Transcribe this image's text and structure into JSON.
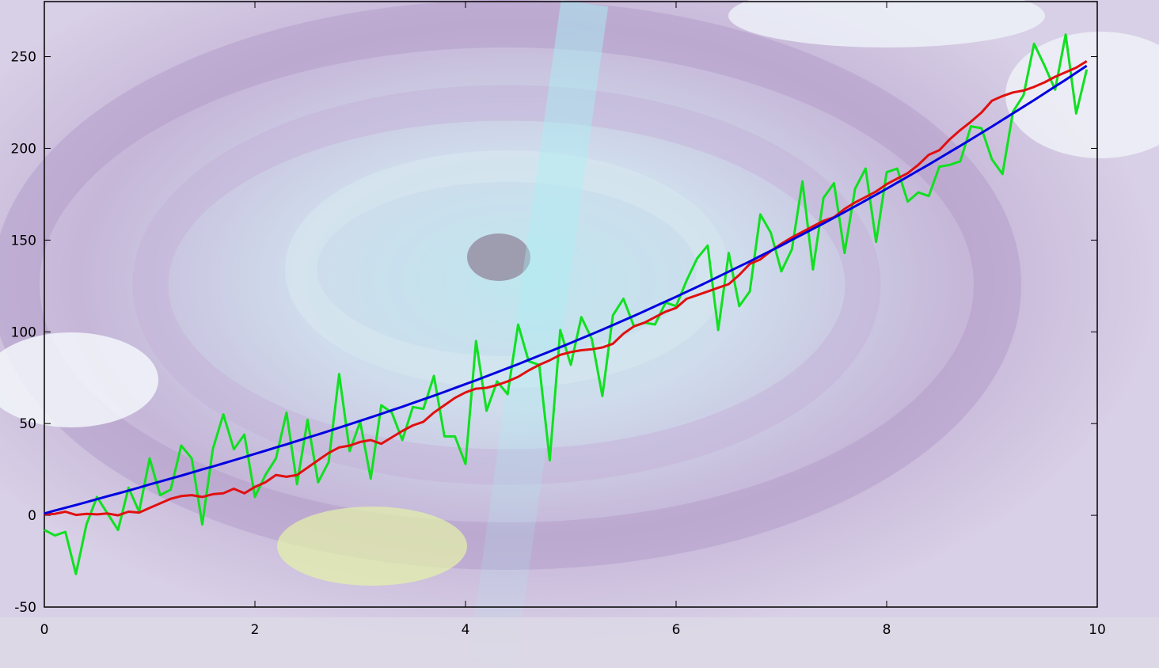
{
  "colors": {
    "frame": "#000000",
    "series_blue": "#0000e0",
    "series_red": "#e01010",
    "series_green": "#10e020",
    "bg_deep": "#c9b8d6",
    "bg_mid": "#b9a6cf",
    "bg_light": "#dde8f2",
    "bg_glow": "#bfe6ee",
    "bg_cloud": "#f2f6fa",
    "bg_yellowgreen": "#e6f2a8",
    "bg_cyan_beam": "#a8f0f4"
  },
  "background": {
    "description_icon": "galaxy-background-image"
  },
  "chart_data": {
    "type": "line",
    "xlim": [
      0,
      10
    ],
    "ylim": [
      -50,
      280
    ],
    "x_ticks": [
      0,
      2,
      4,
      6,
      8,
      10
    ],
    "x_tick_labels": [
      "0",
      "2",
      "4",
      "6",
      "8",
      "10"
    ],
    "y_ticks": [
      -50,
      0,
      50,
      100,
      150,
      200,
      250
    ],
    "y_tick_labels": [
      "-50",
      "0",
      "50",
      "100",
      "150",
      "200",
      "250"
    ],
    "grid": false,
    "x": [
      0,
      0.1,
      0.2,
      0.3,
      0.4,
      0.5,
      0.6,
      0.7,
      0.8,
      0.9,
      1.0,
      1.1,
      1.2,
      1.3,
      1.4,
      1.5,
      1.6,
      1.7,
      1.8,
      1.9,
      2.0,
      2.1,
      2.2,
      2.3,
      2.4,
      2.5,
      2.6,
      2.7,
      2.8,
      2.9,
      3.0,
      3.1,
      3.2,
      3.3,
      3.4,
      3.5,
      3.6,
      3.7,
      3.8,
      3.9,
      4.0,
      4.1,
      4.2,
      4.3,
      4.4,
      4.5,
      4.6,
      4.7,
      4.8,
      4.9,
      5.0,
      5.1,
      5.2,
      5.3,
      5.4,
      5.5,
      5.6,
      5.7,
      5.8,
      5.9,
      6.0,
      6.1,
      6.2,
      6.3,
      6.4,
      6.5,
      6.6,
      6.7,
      6.8,
      6.9,
      7.0,
      7.1,
      7.2,
      7.3,
      7.4,
      7.5,
      7.6,
      7.7,
      7.8,
      7.9,
      8.0,
      8.1,
      8.2,
      8.3,
      8.4,
      8.5,
      8.6,
      8.7,
      8.8,
      8.9,
      9.0,
      9.1,
      9.2,
      9.3,
      9.4,
      9.5,
      9.6,
      9.7,
      9.8,
      9.9
    ],
    "series": [
      {
        "color": "#0000e0",
        "values": [
          1.0,
          2.6,
          4.1,
          5.6,
          7.2,
          8.8,
          10.4,
          11.9,
          13.5,
          15.1,
          16.8,
          18.4,
          20.0,
          21.6,
          23.3,
          25.0,
          26.6,
          28.3,
          30.0,
          31.7,
          33.5,
          35.2,
          37.0,
          38.7,
          40.5,
          42.3,
          44.1,
          45.9,
          47.8,
          49.6,
          51.5,
          53.4,
          55.3,
          57.3,
          59.2,
          61.2,
          63.2,
          65.2,
          67.3,
          69.4,
          71.5,
          73.6,
          75.8,
          78.0,
          80.2,
          82.4,
          84.7,
          87.0,
          89.3,
          91.6,
          94.0,
          96.4,
          98.8,
          101.2,
          103.7,
          106.2,
          108.7,
          111.3,
          113.9,
          116.5,
          119.1,
          121.8,
          124.5,
          127.2,
          130.0,
          132.8,
          135.6,
          138.4,
          141.3,
          144.2,
          147.1,
          150.1,
          153.1,
          156.1,
          159.1,
          162.2,
          165.3,
          168.4,
          171.6,
          174.8,
          178.0,
          181.3,
          184.6,
          187.9,
          191.2,
          194.6,
          198.0,
          201.4,
          204.9,
          208.4,
          211.9,
          215.5,
          219.1,
          222.7,
          226.3,
          230.0,
          233.7,
          237.4,
          241.2,
          245.0
        ]
      },
      {
        "color": "#e01010",
        "values": [
          0.5,
          0.8,
          2.0,
          0.2,
          0.8,
          0.5,
          1.0,
          0.0,
          2.0,
          1.5,
          4.0,
          6.5,
          9.0,
          10.5,
          11.0,
          10.0,
          11.5,
          12.0,
          14.5,
          12.0,
          15.5,
          18.0,
          22.0,
          21.0,
          22.0,
          26.0,
          30.0,
          34.0,
          37.0,
          38.0,
          40.0,
          41.0,
          39.0,
          42.5,
          46.0,
          49.0,
          51.0,
          56.0,
          60.0,
          64.0,
          67.0,
          69.0,
          69.5,
          71.0,
          73.0,
          75.5,
          79.0,
          82.0,
          84.5,
          87.5,
          89.0,
          90.0,
          90.5,
          91.5,
          93.5,
          99.0,
          103.0,
          105.0,
          108.0,
          111.0,
          113.0,
          118.0,
          120.0,
          122.0,
          124.0,
          126.0,
          131.0,
          137.0,
          139.5,
          144.0,
          148.0,
          151.5,
          154.5,
          157.5,
          160.5,
          162.5,
          167.0,
          170.5,
          173.5,
          176.5,
          180.5,
          183.5,
          186.5,
          191.0,
          196.5,
          199.0,
          205.0,
          210.0,
          214.5,
          219.5,
          226.0,
          228.5,
          230.5,
          231.5,
          233.5,
          236.0,
          239.0,
          241.5,
          244.0,
          247.5
        ]
      },
      {
        "color": "#10e020",
        "values": [
          -8,
          -11,
          -9,
          -32,
          -5,
          10,
          1,
          -8,
          15,
          2,
          31,
          11,
          14,
          38,
          31,
          -5,
          36,
          55,
          36,
          44,
          10,
          22,
          31,
          56,
          17,
          52,
          18,
          29,
          77,
          35,
          51,
          20,
          60,
          56,
          41,
          59,
          58,
          76,
          43,
          43,
          28,
          95,
          57,
          73,
          66,
          104,
          84,
          82,
          30,
          101,
          82,
          108,
          96,
          65,
          109,
          118,
          103,
          105,
          104,
          116,
          114,
          128,
          140,
          147,
          101,
          143,
          114,
          122,
          164,
          154,
          133,
          145,
          182,
          134,
          173,
          181,
          143,
          178,
          189,
          149,
          187,
          189,
          171,
          176,
          174,
          190,
          191,
          193,
          212,
          211,
          194,
          186,
          220,
          229,
          257,
          245,
          232,
          262,
          219,
          243
        ]
      }
    ]
  }
}
